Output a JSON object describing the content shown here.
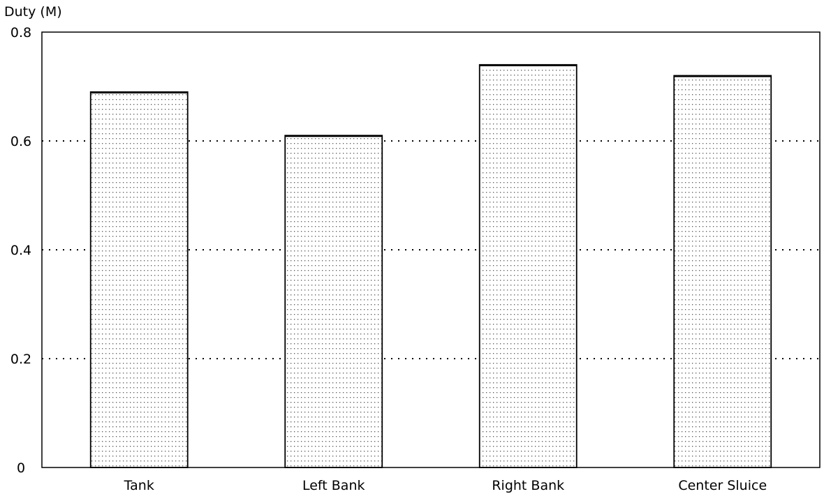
{
  "chart_data": {
    "type": "bar",
    "title": "",
    "ylabel": "Duty (M)",
    "xlabel": "",
    "categories": [
      "Tank",
      "Left Bank",
      "Right Bank",
      "Center Sluice"
    ],
    "values": [
      0.69,
      0.61,
      0.74,
      0.72
    ],
    "ylim": [
      0,
      0.8
    ],
    "yticks": [
      0,
      0.2,
      0.4,
      0.6,
      0.8
    ],
    "ytick_labels": [
      "0",
      "0.2",
      "0.4",
      "0.6",
      "0.8"
    ],
    "grid": "horizontal dotted",
    "bar_fill": "dotted stipple",
    "colors": {
      "bar_outline": "#000000",
      "bar_dots": "#555555",
      "grid": "#000000"
    }
  }
}
